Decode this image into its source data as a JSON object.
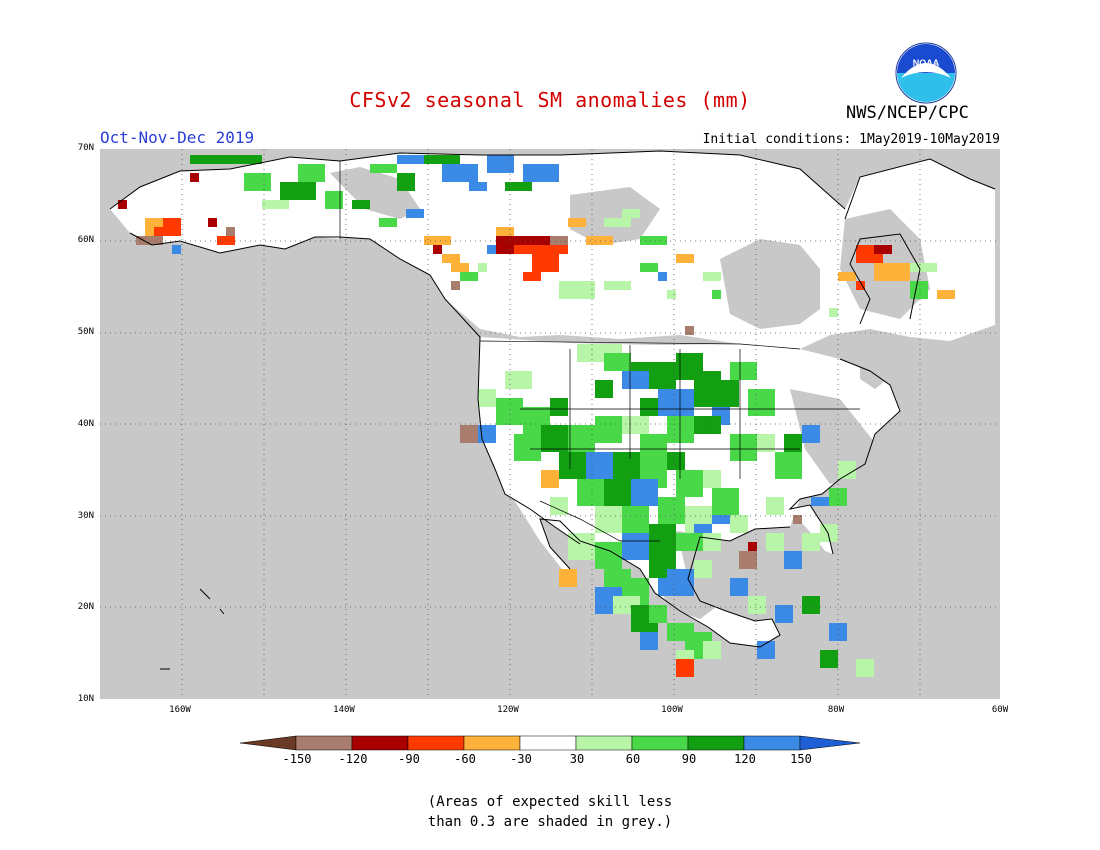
{
  "title": "CFSv2 seasonal SM anomalies (mm)",
  "season_label": "Oct-Nov-Dec 2019",
  "initial_conditions": "Initial conditions: 1May2019-10May2019",
  "organization": "NWS/NCEP/CPC",
  "logo_text": "NOAA",
  "map": {
    "lon_range": [
      -172,
      -60
    ],
    "lat_range": [
      10,
      70
    ],
    "grid": "dotted",
    "land_fill": "#c8c8c8",
    "ocean_fill": "#c8c8c8",
    "lat_labels": [
      "70N",
      "60N",
      "50N",
      "40N",
      "30N",
      "20N",
      "10N"
    ],
    "lon_labels": [
      "160W",
      "140W",
      "120W",
      "100W",
      "80W",
      "60W"
    ]
  },
  "colorbar": {
    "labels": [
      "-150",
      "-120",
      "-90",
      "-60",
      "-30",
      "30",
      "60",
      "90",
      "120",
      "150"
    ],
    "colors": [
      "#6b3a26",
      "#a87d6e",
      "#a80000",
      "#ff3a00",
      "#ffb23a",
      "#ffffff",
      "#b8f5a8",
      "#48d848",
      "#12a012",
      "#3a8ae6",
      "#1e5fd6"
    ]
  },
  "note_lines": [
    "(Areas of expected skill less",
    "than 0.3 are shaded in grey.)"
  ]
}
